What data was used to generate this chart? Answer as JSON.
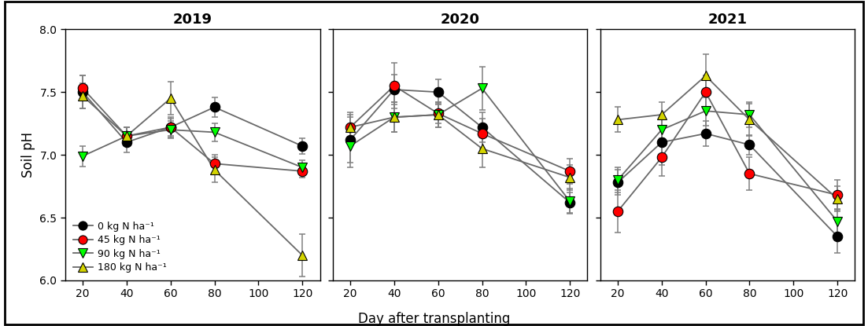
{
  "years": [
    "2019",
    "2020",
    "2021"
  ],
  "x": [
    20,
    40,
    60,
    80,
    120
  ],
  "series": [
    {
      "name": "0 kg N ha⁻¹",
      "color": "black",
      "marker": "o",
      "line_color": "dimgray",
      "data": {
        "2019": [
          7.5,
          7.1,
          7.22,
          7.38,
          7.07
        ],
        "2020": [
          7.12,
          7.52,
          7.5,
          7.22,
          6.62
        ],
        "2021": [
          6.78,
          7.1,
          7.17,
          7.08,
          6.35
        ]
      },
      "err": {
        "2019": [
          0.13,
          0.08,
          0.08,
          0.08,
          0.06
        ],
        "2020": [
          0.18,
          0.12,
          0.1,
          0.12,
          0.08
        ],
        "2021": [
          0.1,
          0.18,
          0.1,
          0.08,
          0.13
        ]
      }
    },
    {
      "name": "45 kg N ha⁻¹",
      "color": "red",
      "marker": "o",
      "line_color": "dimgray",
      "data": {
        "2019": [
          7.53,
          7.15,
          7.22,
          6.93,
          6.87
        ],
        "2020": [
          7.22,
          7.55,
          7.33,
          7.17,
          6.87
        ],
        "2021": [
          6.55,
          6.98,
          7.5,
          6.85,
          6.68
        ]
      },
      "err": {
        "2019": [
          0.1,
          0.07,
          0.07,
          0.07,
          0.05
        ],
        "2020": [
          0.12,
          0.18,
          0.08,
          0.12,
          0.1
        ],
        "2021": [
          0.17,
          0.15,
          0.13,
          0.13,
          0.12
        ]
      }
    },
    {
      "name": "90 kg N ha⁻¹",
      "color": "lime",
      "marker": "v",
      "line_color": "dimgray",
      "data": {
        "2019": [
          6.99,
          7.15,
          7.2,
          7.18,
          6.9
        ],
        "2020": [
          7.07,
          7.3,
          7.32,
          7.53,
          6.63
        ],
        "2021": [
          6.8,
          7.2,
          7.35,
          7.32,
          6.47
        ]
      },
      "err": {
        "2019": [
          0.08,
          0.07,
          0.07,
          0.07,
          0.06
        ],
        "2020": [
          0.17,
          0.12,
          0.1,
          0.17,
          0.1
        ],
        "2021": [
          0.1,
          0.1,
          0.12,
          0.1,
          0.1
        ]
      }
    },
    {
      "name": "180 kg N ha⁻¹",
      "color": "#d4d400",
      "marker": "^",
      "line_color": "dimgray",
      "data": {
        "2019": [
          7.47,
          7.15,
          7.45,
          6.88,
          6.2
        ],
        "2020": [
          7.22,
          7.3,
          7.32,
          7.05,
          6.82
        ],
        "2021": [
          7.28,
          7.32,
          7.63,
          7.28,
          6.65
        ]
      },
      "err": {
        "2019": [
          0.1,
          0.07,
          0.13,
          0.1,
          0.17
        ],
        "2020": [
          0.1,
          0.12,
          0.1,
          0.15,
          0.1
        ],
        "2021": [
          0.1,
          0.1,
          0.17,
          0.13,
          0.1
        ]
      }
    }
  ],
  "ylim": [
    6.0,
    8.0
  ],
  "yticks": [
    6.0,
    6.5,
    7.0,
    7.5,
    8.0
  ],
  "xticks": [
    20,
    40,
    60,
    80,
    100,
    120
  ],
  "ylabel": "Soil pH",
  "xlabel": "Day after transplanting",
  "background_color": "white",
  "marker_size": 9,
  "linewidth": 1.3,
  "elinewidth": 1.1,
  "capsize": 3,
  "ecolor": "gray"
}
